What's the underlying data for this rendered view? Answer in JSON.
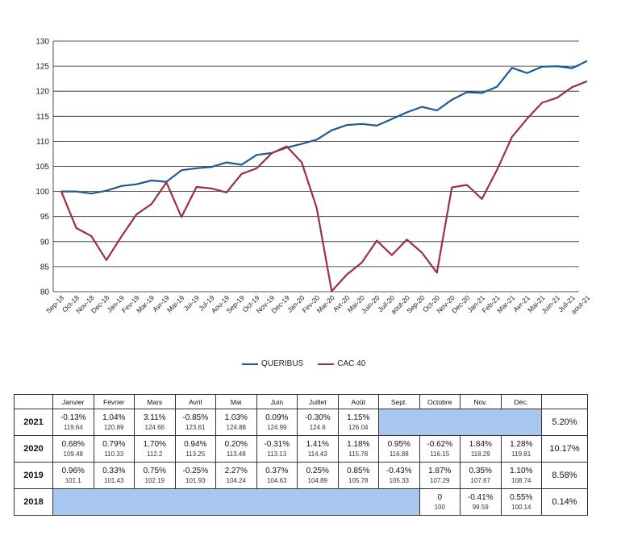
{
  "colors": {
    "queribus": "#1f5a96",
    "cac40": "#9b3040",
    "highlight": "#a9c7ee",
    "grid": "#222222"
  },
  "chart_data": {
    "type": "line",
    "title": "",
    "xlabel": "",
    "ylabel": "",
    "ylim": [
      80,
      130
    ],
    "yticks": [
      80,
      85,
      90,
      95,
      100,
      105,
      110,
      115,
      120,
      125,
      130
    ],
    "grid": true,
    "legend_position": "bottom",
    "x": [
      "Sep-18",
      "Oct-18",
      "Nov-18",
      "Dec-18",
      "Jan-19",
      "Fev-19",
      "Mar-19",
      "Avr-19",
      "Mai-19",
      "Jui-19",
      "Jul-19",
      "Aou-19",
      "Sep-19",
      "Oct-19",
      "Nov-19",
      "Dec-19",
      "Jan-20",
      "Fev-20",
      "Mar-20",
      "Avr-20",
      "Mai-20",
      "Juin-20",
      "Juil-20",
      "aout-20",
      "Sep-20",
      "Oct-20",
      "Nov-20",
      "Dec-20",
      "Jan-21",
      "Feb-21",
      "Mar-21",
      "Avr-21",
      "Mai-21",
      "Juin-21",
      "Juil-21",
      "aout-21"
    ],
    "series": [
      {
        "name": "QUERIBUS",
        "values": [
          100,
          100,
          99.59,
          100.14,
          101.1,
          101.43,
          102.19,
          101.93,
          104.24,
          104.63,
          104.89,
          105.78,
          105.33,
          107.29,
          107.67,
          108.74,
          109.48,
          110.33,
          112.2,
          113.25,
          113.48,
          113.13,
          114.43,
          115.78,
          116.88,
          116.15,
          118.29,
          119.81,
          119.64,
          120.89,
          124.66,
          123.61,
          124.88,
          124.99,
          124.6,
          126.04
        ]
      },
      {
        "name": "CAC 40",
        "values": [
          100,
          92.7,
          91.1,
          86.3,
          91.0,
          95.4,
          97.5,
          101.8,
          94.9,
          100.9,
          100.6,
          99.8,
          103.5,
          104.6,
          107.6,
          109.0,
          105.8,
          96.7,
          80.1,
          83.4,
          85.8,
          90.2,
          87.3,
          90.4,
          87.8,
          83.8,
          100.8,
          101.3,
          98.5,
          104.3,
          110.9,
          114.5,
          117.7,
          118.7,
          120.8,
          122.0
        ]
      }
    ]
  },
  "legend": [
    {
      "label": "QUERIBUS",
      "key": "queribus"
    },
    {
      "label": "CAC 40",
      "key": "cac40"
    }
  ],
  "table": {
    "months": [
      "Janvier",
      "Février",
      "Mars",
      "Avril",
      "Mai",
      "Juin",
      "Juillet",
      "Août",
      "Sept.",
      "Octobre",
      "Nov.",
      "Déc."
    ],
    "rows": [
      {
        "year": "2021",
        "total": "5.20%",
        "cells": [
          {
            "pct": "-0.13%",
            "val": "119.64"
          },
          {
            "pct": "1.04%",
            "val": "120.89"
          },
          {
            "pct": "3.11%",
            "val": "124.66"
          },
          {
            "pct": "-0.85%",
            "val": "123.61"
          },
          {
            "pct": "1.03%",
            "val": "124.88"
          },
          {
            "pct": "0.09%",
            "val": "124.99"
          },
          {
            "pct": "-0.30%",
            "val": "124.6"
          },
          {
            "pct": "1.15%",
            "val": "126.04"
          },
          null,
          null,
          null,
          null
        ]
      },
      {
        "year": "2020",
        "total": "10.17%",
        "cells": [
          {
            "pct": "0.68%",
            "val": "109.48"
          },
          {
            "pct": "0.79%",
            "val": "110.33"
          },
          {
            "pct": "1.70%",
            "val": "112.2"
          },
          {
            "pct": "0.94%",
            "val": "113.25"
          },
          {
            "pct": "0.20%",
            "val": "113.48"
          },
          {
            "pct": "-0.31%",
            "val": "113.13"
          },
          {
            "pct": "1.41%",
            "val": "114.43"
          },
          {
            "pct": "1.18%",
            "val": "115.78"
          },
          {
            "pct": "0.95%",
            "val": "116.88"
          },
          {
            "pct": "-0.62%",
            "val": "116.15"
          },
          {
            "pct": "1.84%",
            "val": "118.29"
          },
          {
            "pct": "1.28%",
            "val": "119.81"
          }
        ]
      },
      {
        "year": "2019",
        "total": "8.58%",
        "cells": [
          {
            "pct": "0.96%",
            "val": "101.1"
          },
          {
            "pct": "0.33%",
            "val": "101.43"
          },
          {
            "pct": "0.75%",
            "val": "102.19"
          },
          {
            "pct": "-0.25%",
            "val": "101.93"
          },
          {
            "pct": "2.27%",
            "val": "104.24"
          },
          {
            "pct": "0.37%",
            "val": "104.63"
          },
          {
            "pct": "0.25%",
            "val": "104.89"
          },
          {
            "pct": "0.85%",
            "val": "105.78"
          },
          {
            "pct": "-0.43%",
            "val": "105.33"
          },
          {
            "pct": "1.87%",
            "val": "107.29"
          },
          {
            "pct": "0.35%",
            "val": "107.67"
          },
          {
            "pct": "1.10%",
            "val": "108.74"
          }
        ]
      },
      {
        "year": "2018",
        "total": "0.14%",
        "cells": [
          null,
          null,
          null,
          null,
          null,
          null,
          null,
          null,
          null,
          {
            "pct": "0",
            "val": "100"
          },
          {
            "pct": "-0.41%",
            "val": "99.59"
          },
          {
            "pct": "0.55%",
            "val": "100.14"
          }
        ]
      }
    ]
  }
}
